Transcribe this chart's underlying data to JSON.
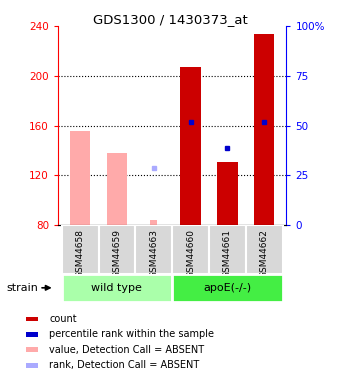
{
  "title": "GDS1300 / 1430373_at",
  "samples": [
    "GSM44658",
    "GSM44659",
    "GSM44663",
    "GSM44660",
    "GSM44661",
    "GSM44662"
  ],
  "ylim_left": [
    80,
    240
  ],
  "ylim_right": [
    0,
    100
  ],
  "yticks_left": [
    80,
    120,
    160,
    200,
    240
  ],
  "yticks_right": [
    0,
    25,
    50,
    75,
    100
  ],
  "yright_labels": [
    "0",
    "25",
    "50",
    "75",
    "100%"
  ],
  "bar_values": [
    null,
    null,
    null,
    207,
    131,
    234
  ],
  "bar_color": "#cc0000",
  "absent_bar_values": [
    156,
    138,
    null,
    null,
    null,
    null
  ],
  "absent_bar_color": "#ffaaaa",
  "absent_small_bar": [
    null,
    null,
    84,
    null,
    null,
    null
  ],
  "rank_values": [
    null,
    null,
    null,
    163,
    142,
    163
  ],
  "rank_color": "#0000cc",
  "absent_rank_values": [
    null,
    null,
    126,
    null,
    null,
    null
  ],
  "absent_rank_color": "#aaaaff",
  "bg_color_wt": "#aaffaa",
  "bg_color_apoe": "#44ee44",
  "legend_items": [
    {
      "label": "count",
      "color": "#cc0000"
    },
    {
      "label": "percentile rank within the sample",
      "color": "#0000cc"
    },
    {
      "label": "value, Detection Call = ABSENT",
      "color": "#ffaaaa"
    },
    {
      "label": "rank, Detection Call = ABSENT",
      "color": "#aaaaff"
    }
  ],
  "strain_label": "strain",
  "dotted_lines": [
    120,
    160,
    200
  ]
}
